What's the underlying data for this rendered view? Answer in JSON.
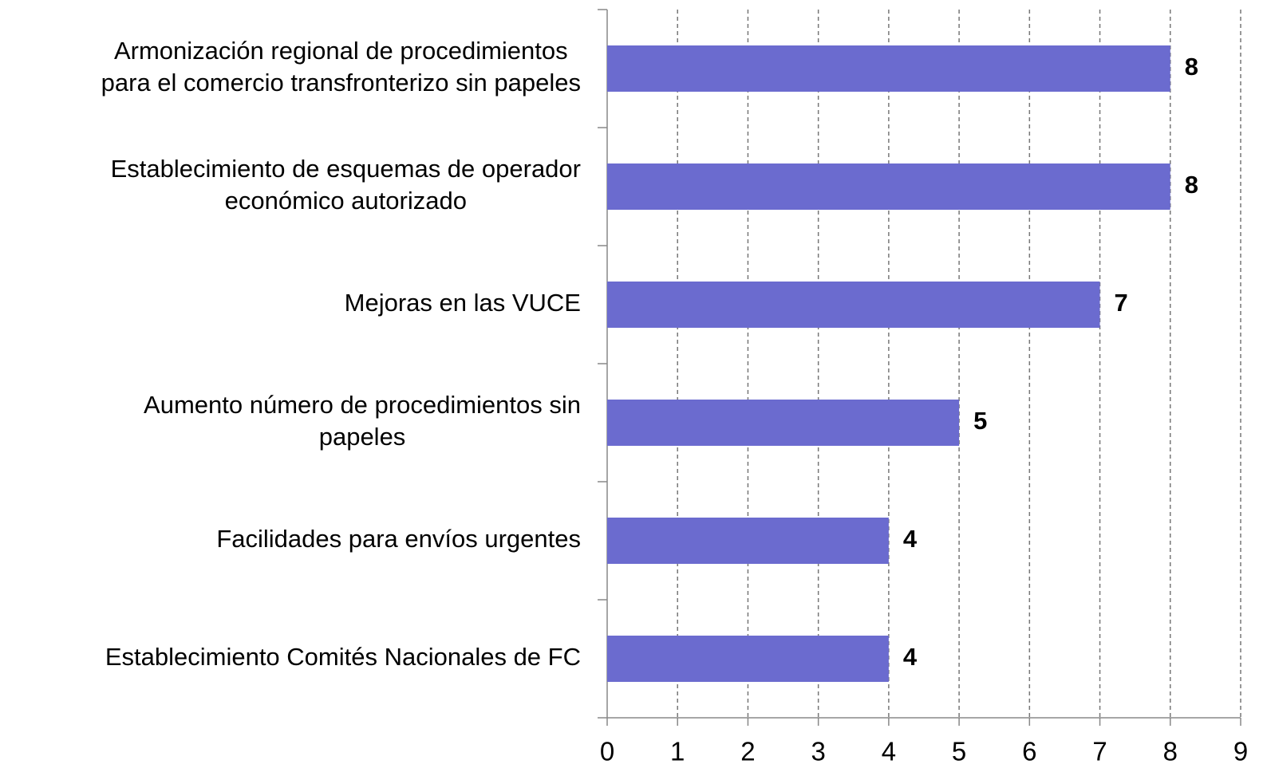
{
  "chart_data": {
    "type": "bar",
    "orientation": "horizontal",
    "categories": [
      "Armonización regional de procedimientos\npara el comercio transfronterizo sin papeles",
      "Establecimiento de esquemas de operador\neconómico autorizado",
      "Mejoras en las VUCE",
      "Aumento número de procedimientos sin\npapeles",
      "Facilidades para envíos urgentes",
      "Establecimiento Comités Nacionales de FC"
    ],
    "values": [
      8,
      8,
      7,
      5,
      4,
      4
    ],
    "color": "#6b6bcf",
    "xlim": [
      0,
      9
    ],
    "xticks": [
      0,
      1,
      2,
      3,
      4,
      5,
      6,
      7,
      8,
      9
    ],
    "grid": true
  }
}
